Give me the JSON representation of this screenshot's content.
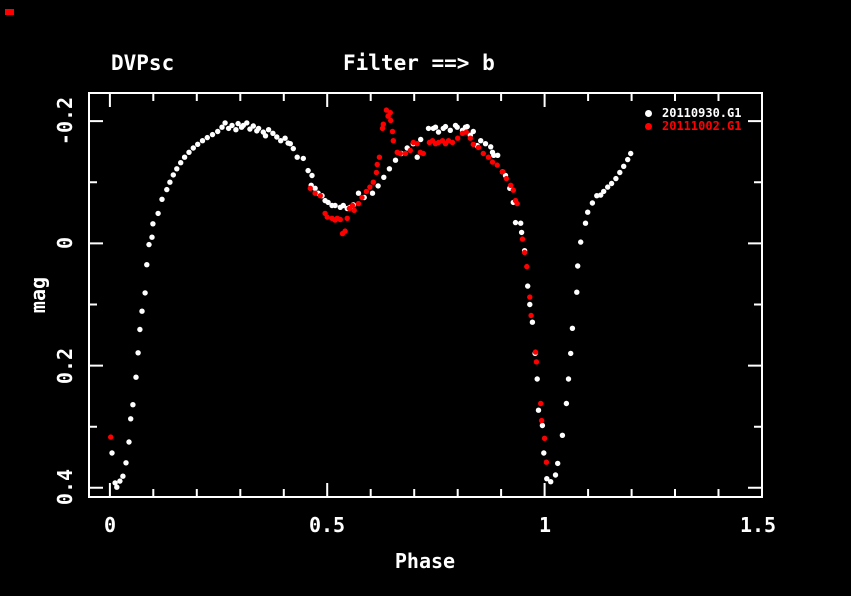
{
  "header": {
    "object": "DVPsc",
    "filter": "Filter ==> b"
  },
  "screenshot_marker": {
    "color": "#ff0000"
  },
  "legend": {
    "position": "top-right",
    "entries": [
      {
        "label": "20110930.G1",
        "color": "#ffffff"
      },
      {
        "label": "20111002.G1",
        "color": "#ff0000"
      }
    ]
  },
  "axes": {
    "xlabel": "Phase",
    "ylabel": "mag",
    "x_tick_labels": [
      "0",
      "0.5",
      "1",
      "1.5"
    ],
    "y_tick_labels": [
      "-0.2",
      "0",
      "0.2",
      "0.4"
    ]
  },
  "chart_data": {
    "type": "scatter",
    "title": "DVPsc",
    "subtitle": "Filter ==> b",
    "xlabel": "Phase",
    "ylabel": "mag",
    "xlim": [
      -0.048,
      1.5
    ],
    "ylim": [
      -0.246,
      0.415
    ],
    "y_axis_inverted": true,
    "x_major_ticks": [
      0,
      0.5,
      1,
      1.5
    ],
    "x_minor_tick_step": 0.1,
    "y_major_ticks": [
      -0.2,
      0,
      0.2,
      0.4
    ],
    "y_minor_ticks": [
      -0.1,
      0.1,
      0.3
    ],
    "grid": false,
    "background_color": "#000000",
    "axis_color": "#ffffff",
    "legend_position": "top-right",
    "series": [
      {
        "name": "20110930.G1",
        "color": "#ffffff",
        "marker": "circle",
        "points": [
          [
            0.005,
            0.343
          ],
          [
            0.012,
            0.392
          ],
          [
            0.016,
            0.399
          ],
          [
            0.023,
            0.389
          ],
          [
            0.03,
            0.381
          ],
          [
            0.037,
            0.359
          ],
          [
            0.044,
            0.325
          ],
          [
            0.048,
            0.287
          ],
          [
            0.053,
            0.264
          ],
          [
            0.06,
            0.219
          ],
          [
            0.065,
            0.179
          ],
          [
            0.069,
            0.141
          ],
          [
            0.074,
            0.111
          ],
          [
            0.081,
            0.081
          ],
          [
            0.085,
            0.035
          ],
          [
            0.09,
            0.002
          ],
          [
            0.097,
            -0.01
          ],
          [
            0.099,
            -0.032
          ],
          [
            0.111,
            -0.049
          ],
          [
            0.12,
            -0.072
          ],
          [
            0.131,
            -0.088
          ],
          [
            0.138,
            -0.1
          ],
          [
            0.146,
            -0.112
          ],
          [
            0.154,
            -0.122
          ],
          [
            0.163,
            -0.132
          ],
          [
            0.172,
            -0.141
          ],
          [
            0.182,
            -0.149
          ],
          [
            0.192,
            -0.156
          ],
          [
            0.202,
            -0.162
          ],
          [
            0.213,
            -0.168
          ],
          [
            0.224,
            -0.173
          ],
          [
            0.236,
            -0.178
          ],
          [
            0.248,
            -0.183
          ],
          [
            0.258,
            -0.19
          ],
          [
            0.265,
            -0.197
          ],
          [
            0.273,
            -0.188
          ],
          [
            0.281,
            -0.193
          ],
          [
            0.29,
            -0.186
          ],
          [
            0.295,
            -0.196
          ],
          [
            0.303,
            -0.19
          ],
          [
            0.307,
            -0.193
          ],
          [
            0.315,
            -0.197
          ],
          [
            0.322,
            -0.187
          ],
          [
            0.33,
            -0.192
          ],
          [
            0.338,
            -0.184
          ],
          [
            0.342,
            -0.188
          ],
          [
            0.353,
            -0.182
          ],
          [
            0.358,
            -0.176
          ],
          [
            0.365,
            -0.186
          ],
          [
            0.375,
            -0.18
          ],
          [
            0.384,
            -0.174
          ],
          [
            0.393,
            -0.168
          ],
          [
            0.403,
            -0.172
          ],
          [
            0.41,
            -0.164
          ],
          [
            0.415,
            -0.163
          ],
          [
            0.422,
            -0.155
          ],
          [
            0.431,
            -0.141
          ],
          [
            0.445,
            -0.139
          ],
          [
            0.456,
            -0.119
          ],
          [
            0.463,
            -0.095
          ],
          [
            0.465,
            -0.111
          ],
          [
            0.472,
            -0.09
          ],
          [
            0.479,
            -0.082
          ],
          [
            0.488,
            -0.078
          ],
          [
            0.495,
            -0.07
          ],
          [
            0.502,
            -0.067
          ],
          [
            0.511,
            -0.062
          ],
          [
            0.518,
            -0.062
          ],
          [
            0.53,
            -0.059
          ],
          [
            0.537,
            -0.062
          ],
          [
            0.546,
            -0.057
          ],
          [
            0.553,
            -0.059
          ],
          [
            0.56,
            -0.063
          ],
          [
            0.572,
            -0.082
          ],
          [
            0.585,
            -0.075
          ],
          [
            0.604,
            -0.082
          ],
          [
            0.617,
            -0.094
          ],
          [
            0.63,
            -0.108
          ],
          [
            0.643,
            -0.122
          ],
          [
            0.657,
            -0.136
          ],
          [
            0.67,
            -0.147
          ],
          [
            0.684,
            -0.156
          ],
          [
            0.698,
            -0.163
          ],
          [
            0.707,
            -0.141
          ],
          [
            0.715,
            -0.17
          ],
          [
            0.733,
            -0.188
          ],
          [
            0.744,
            -0.188
          ],
          [
            0.749,
            -0.19
          ],
          [
            0.756,
            -0.182
          ],
          [
            0.767,
            -0.188
          ],
          [
            0.772,
            -0.191
          ],
          [
            0.783,
            -0.185
          ],
          [
            0.795,
            -0.193
          ],
          [
            0.799,
            -0.19
          ],
          [
            0.811,
            -0.185
          ],
          [
            0.818,
            -0.19
          ],
          [
            0.822,
            -0.191
          ],
          [
            0.829,
            -0.177
          ],
          [
            0.836,
            -0.183
          ],
          [
            0.845,
            -0.16
          ],
          [
            0.853,
            -0.168
          ],
          [
            0.864,
            -0.163
          ],
          [
            0.876,
            -0.158
          ],
          [
            0.88,
            -0.149
          ],
          [
            0.883,
            -0.144
          ],
          [
            0.892,
            -0.144
          ],
          [
            0.903,
            -0.117
          ],
          [
            0.91,
            -0.111
          ],
          [
            0.92,
            -0.09
          ],
          [
            0.928,
            -0.067
          ],
          [
            0.933,
            -0.034
          ],
          [
            0.945,
            -0.033
          ],
          [
            0.947,
            -0.018
          ],
          [
            0.954,
            0.012
          ],
          [
            0.961,
            0.07
          ],
          [
            0.966,
            0.1
          ],
          [
            0.972,
            0.129
          ],
          [
            0.978,
            0.18
          ],
          [
            0.983,
            0.222
          ],
          [
            0.986,
            0.273
          ],
          [
            0.995,
            0.298
          ],
          [
            0.998,
            0.343
          ],
          [
            1.005,
            0.385
          ],
          [
            1.014,
            0.39
          ],
          [
            1.025,
            0.379
          ],
          [
            1.03,
            0.36
          ],
          [
            1.041,
            0.314
          ],
          [
            1.05,
            0.262
          ],
          [
            1.055,
            0.222
          ],
          [
            1.06,
            0.18
          ],
          [
            1.064,
            0.139
          ],
          [
            1.074,
            0.08
          ],
          [
            1.076,
            0.037
          ],
          [
            1.083,
            -0.002
          ],
          [
            1.094,
            -0.033
          ],
          [
            1.099,
            -0.051
          ],
          [
            1.11,
            -0.066
          ],
          [
            1.12,
            -0.078
          ],
          [
            1.129,
            -0.079
          ],
          [
            1.136,
            -0.085
          ],
          [
            1.145,
            -0.092
          ],
          [
            1.154,
            -0.098
          ],
          [
            1.164,
            -0.106
          ],
          [
            1.173,
            -0.116
          ],
          [
            1.182,
            -0.126
          ],
          [
            1.191,
            -0.137
          ],
          [
            1.198,
            -0.147
          ]
        ]
      },
      {
        "name": "20111002.G1",
        "color": "#ff0000",
        "marker": "circle",
        "points": [
          [
            0.002,
            0.317
          ],
          [
            0.461,
            -0.09
          ],
          [
            0.472,
            -0.082
          ],
          [
            0.484,
            -0.078
          ],
          [
            0.495,
            -0.049
          ],
          [
            0.5,
            -0.043
          ],
          [
            0.511,
            -0.041
          ],
          [
            0.518,
            -0.038
          ],
          [
            0.523,
            -0.041
          ],
          [
            0.53,
            -0.039
          ],
          [
            0.535,
            -0.016
          ],
          [
            0.541,
            -0.02
          ],
          [
            0.546,
            -0.041
          ],
          [
            0.551,
            -0.057
          ],
          [
            0.558,
            -0.062
          ],
          [
            0.562,
            -0.054
          ],
          [
            0.572,
            -0.065
          ],
          [
            0.58,
            -0.075
          ],
          [
            0.59,
            -0.085
          ],
          [
            0.598,
            -0.092
          ],
          [
            0.606,
            -0.1
          ],
          [
            0.613,
            -0.116
          ],
          [
            0.615,
            -0.129
          ],
          [
            0.62,
            -0.141
          ],
          [
            0.627,
            -0.188
          ],
          [
            0.629,
            -0.195
          ],
          [
            0.636,
            -0.218
          ],
          [
            0.64,
            -0.208
          ],
          [
            0.645,
            -0.214
          ],
          [
            0.646,
            -0.201
          ],
          [
            0.65,
            -0.183
          ],
          [
            0.652,
            -0.168
          ],
          [
            0.661,
            -0.149
          ],
          [
            0.668,
            -0.147
          ],
          [
            0.68,
            -0.147
          ],
          [
            0.691,
            -0.152
          ],
          [
            0.698,
            -0.165
          ],
          [
            0.707,
            -0.163
          ],
          [
            0.714,
            -0.149
          ],
          [
            0.721,
            -0.147
          ],
          [
            0.735,
            -0.165
          ],
          [
            0.742,
            -0.168
          ],
          [
            0.749,
            -0.163
          ],
          [
            0.756,
            -0.165
          ],
          [
            0.765,
            -0.168
          ],
          [
            0.772,
            -0.163
          ],
          [
            0.779,
            -0.168
          ],
          [
            0.788,
            -0.165
          ],
          [
            0.8,
            -0.172
          ],
          [
            0.811,
            -0.18
          ],
          [
            0.82,
            -0.182
          ],
          [
            0.829,
            -0.172
          ],
          [
            0.836,
            -0.162
          ],
          [
            0.848,
            -0.157
          ],
          [
            0.859,
            -0.147
          ],
          [
            0.871,
            -0.141
          ],
          [
            0.88,
            -0.133
          ],
          [
            0.891,
            -0.128
          ],
          [
            0.903,
            -0.117
          ],
          [
            0.912,
            -0.106
          ],
          [
            0.922,
            -0.095
          ],
          [
            0.928,
            -0.087
          ],
          [
            0.933,
            -0.07
          ],
          [
            0.937,
            -0.065
          ],
          [
            0.949,
            -0.007
          ],
          [
            0.954,
            0.015
          ],
          [
            0.959,
            0.038
          ],
          [
            0.966,
            0.088
          ],
          [
            0.969,
            0.118
          ],
          [
            0.979,
            0.178
          ],
          [
            0.981,
            0.194
          ],
          [
            0.991,
            0.262
          ],
          [
            0.993,
            0.29
          ],
          [
            1.0,
            0.319
          ],
          [
            1.004,
            0.358
          ]
        ]
      }
    ]
  }
}
